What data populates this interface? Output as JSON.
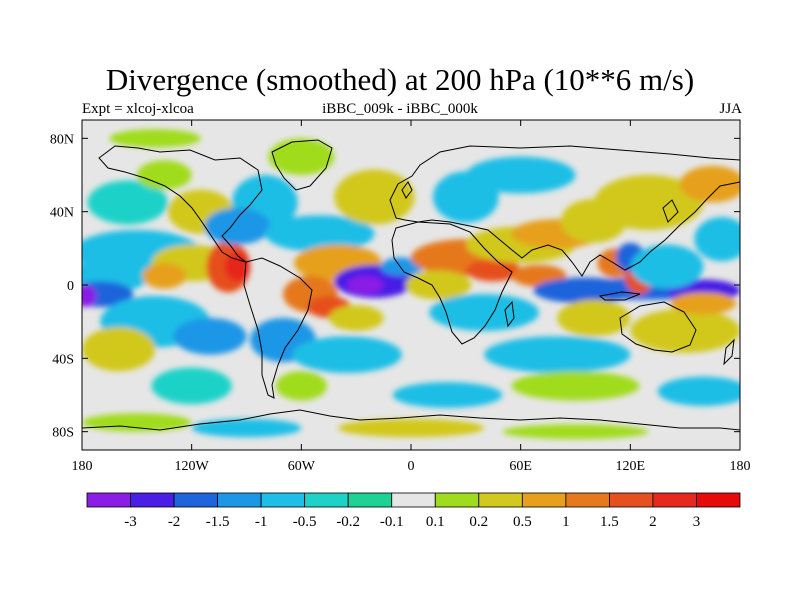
{
  "title": "Divergence (smoothed) at 200 hPa (10**6 m/s)",
  "left_label": "Expt = xlcoj-xlcoa",
  "center_label": "iBBC_009k - iBBC_000k",
  "right_label": "JJA",
  "lat_labels": [
    "80N",
    "40N",
    "0",
    "40S",
    "80S"
  ],
  "lat_values": [
    80,
    40,
    0,
    -40,
    -80
  ],
  "lon_labels": [
    "180",
    "120W",
    "60W",
    "0",
    "60E",
    "120E",
    "180"
  ],
  "lon_values": [
    -180,
    -120,
    -60,
    0,
    60,
    120,
    180
  ],
  "colorbar": {
    "labels": [
      "-3",
      "-2",
      "-1.5",
      "-1",
      "-0.5",
      "-0.2",
      "-0.1",
      "0.1",
      "0.2",
      "0.5",
      "1",
      "1.5",
      "2",
      "3"
    ],
    "colors": [
      "#8a1ee6",
      "#4a1ee6",
      "#1e64dc",
      "#1e96e6",
      "#1ebee6",
      "#1ed2c8",
      "#1ed296",
      "#e6e6e6",
      "#a0dc1e",
      "#d2c81e",
      "#e6a01e",
      "#e6781e",
      "#e6501e",
      "#e6281e",
      "#e60a0a"
    ]
  },
  "blobs": [
    {
      "lon": -165,
      "lat": 5,
      "rx": 22,
      "ry": 9,
      "level": 4
    },
    {
      "lon": -170,
      "lat": -5,
      "rx": 18,
      "ry": 7,
      "level": 2
    },
    {
      "lon": -178,
      "lat": -6,
      "rx": 6,
      "ry": 6,
      "level": 0
    },
    {
      "lon": -150,
      "lat": 18,
      "rx": 35,
      "ry": 12,
      "level": 4
    },
    {
      "lon": -120,
      "lat": 12,
      "rx": 22,
      "ry": 10,
      "level": 9
    },
    {
      "lon": -135,
      "lat": 5,
      "rx": 12,
      "ry": 7,
      "level": 10
    },
    {
      "lon": -100,
      "lat": 10,
      "rx": 12,
      "ry": 14,
      "level": 12
    },
    {
      "lon": -95,
      "lat": 10,
      "rx": 7,
      "ry": 8,
      "level": 13
    },
    {
      "lon": -140,
      "lat": -20,
      "rx": 30,
      "ry": 14,
      "level": 4
    },
    {
      "lon": -110,
      "lat": -28,
      "rx": 20,
      "ry": 10,
      "level": 3
    },
    {
      "lon": -160,
      "lat": -35,
      "rx": 20,
      "ry": 12,
      "level": 9
    },
    {
      "lon": -120,
      "lat": -55,
      "rx": 22,
      "ry": 10,
      "level": 5
    },
    {
      "lon": -60,
      "lat": -55,
      "rx": 14,
      "ry": 8,
      "level": 8
    },
    {
      "lon": -155,
      "lat": 45,
      "rx": 22,
      "ry": 12,
      "level": 5
    },
    {
      "lon": -115,
      "lat": 40,
      "rx": 18,
      "ry": 12,
      "level": 9
    },
    {
      "lon": -135,
      "lat": 60,
      "rx": 15,
      "ry": 8,
      "level": 8
    },
    {
      "lon": -80,
      "lat": 45,
      "rx": 18,
      "ry": 15,
      "level": 4
    },
    {
      "lon": -95,
      "lat": 32,
      "rx": 18,
      "ry": 10,
      "level": 3
    },
    {
      "lon": -50,
      "lat": 28,
      "rx": 30,
      "ry": 10,
      "level": 4
    },
    {
      "lon": -20,
      "lat": 48,
      "rx": 22,
      "ry": 15,
      "level": 9
    },
    {
      "lon": -60,
      "lat": 70,
      "rx": 18,
      "ry": 10,
      "level": 8
    },
    {
      "lon": -40,
      "lat": 12,
      "rx": 24,
      "ry": 10,
      "level": 10
    },
    {
      "lon": -55,
      "lat": -5,
      "rx": 15,
      "ry": 10,
      "level": 11
    },
    {
      "lon": -45,
      "lat": -12,
      "rx": 12,
      "ry": 6,
      "level": 12
    },
    {
      "lon": -20,
      "lat": 2,
      "rx": 22,
      "ry": 9,
      "level": 1
    },
    {
      "lon": -25,
      "lat": 0,
      "rx": 10,
      "ry": 5,
      "level": 0
    },
    {
      "lon": -5,
      "lat": 10,
      "rx": 12,
      "ry": 5,
      "level": 3
    },
    {
      "lon": -70,
      "lat": -30,
      "rx": 18,
      "ry": 12,
      "level": 3
    },
    {
      "lon": -35,
      "lat": -38,
      "rx": 30,
      "ry": 10,
      "level": 4
    },
    {
      "lon": -30,
      "lat": -18,
      "rx": 15,
      "ry": 7,
      "level": 9
    },
    {
      "lon": 30,
      "lat": 15,
      "rx": 30,
      "ry": 10,
      "level": 11
    },
    {
      "lon": 45,
      "lat": 8,
      "rx": 15,
      "ry": 6,
      "level": 12
    },
    {
      "lon": 15,
      "lat": 0,
      "rx": 18,
      "ry": 8,
      "level": 9
    },
    {
      "lon": 40,
      "lat": -15,
      "rx": 30,
      "ry": 10,
      "level": 4
    },
    {
      "lon": 60,
      "lat": 22,
      "rx": 30,
      "ry": 10,
      "level": 9
    },
    {
      "lon": 80,
      "lat": 28,
      "rx": 25,
      "ry": 8,
      "level": 10
    },
    {
      "lon": 100,
      "lat": 35,
      "rx": 18,
      "ry": 12,
      "level": 9
    },
    {
      "lon": 70,
      "lat": 5,
      "rx": 15,
      "ry": 6,
      "level": 11
    },
    {
      "lon": 95,
      "lat": -3,
      "rx": 28,
      "ry": 7,
      "level": 2
    },
    {
      "lon": 130,
      "lat": -2,
      "rx": 40,
      "ry": 6,
      "level": 2
    },
    {
      "lon": 160,
      "lat": -3,
      "rx": 20,
      "ry": 6,
      "level": 1
    },
    {
      "lon": 112,
      "lat": 12,
      "rx": 10,
      "ry": 8,
      "level": 11
    },
    {
      "lon": 125,
      "lat": 5,
      "rx": 8,
      "ry": 10,
      "level": 12
    },
    {
      "lon": 120,
      "lat": 15,
      "rx": 8,
      "ry": 8,
      "level": 2
    },
    {
      "lon": 140,
      "lat": 10,
      "rx": 20,
      "ry": 12,
      "level": 4
    },
    {
      "lon": 100,
      "lat": -18,
      "rx": 20,
      "ry": 10,
      "level": 9
    },
    {
      "lon": 150,
      "lat": -25,
      "rx": 30,
      "ry": 12,
      "level": 9
    },
    {
      "lon": 160,
      "lat": -10,
      "rx": 18,
      "ry": 6,
      "level": 10
    },
    {
      "lon": 80,
      "lat": -38,
      "rx": 40,
      "ry": 10,
      "level": 4
    },
    {
      "lon": 30,
      "lat": 48,
      "rx": 18,
      "ry": 14,
      "level": 4
    },
    {
      "lon": 60,
      "lat": 60,
      "rx": 30,
      "ry": 10,
      "level": 4
    },
    {
      "lon": 130,
      "lat": 45,
      "rx": 30,
      "ry": 15,
      "level": 9
    },
    {
      "lon": 165,
      "lat": 55,
      "rx": 18,
      "ry": 10,
      "level": 10
    },
    {
      "lon": 170,
      "lat": 25,
      "rx": 15,
      "ry": 12,
      "level": 4
    },
    {
      "lon": 160,
      "lat": -58,
      "rx": 25,
      "ry": 8,
      "level": 4
    },
    {
      "lon": 90,
      "lat": -55,
      "rx": 35,
      "ry": 8,
      "level": 8
    },
    {
      "lon": 20,
      "lat": -60,
      "rx": 30,
      "ry": 7,
      "level": 4
    },
    {
      "lon": -150,
      "lat": -75,
      "rx": 30,
      "ry": 5,
      "level": 8
    },
    {
      "lon": -90,
      "lat": -78,
      "rx": 30,
      "ry": 5,
      "level": 4
    },
    {
      "lon": 0,
      "lat": -78,
      "rx": 40,
      "ry": 5,
      "level": 9
    },
    {
      "lon": 90,
      "lat": -80,
      "rx": 40,
      "ry": 4,
      "level": 8
    },
    {
      "lon": -140,
      "lat": 80,
      "rx": 25,
      "ry": 5,
      "level": 8
    }
  ]
}
